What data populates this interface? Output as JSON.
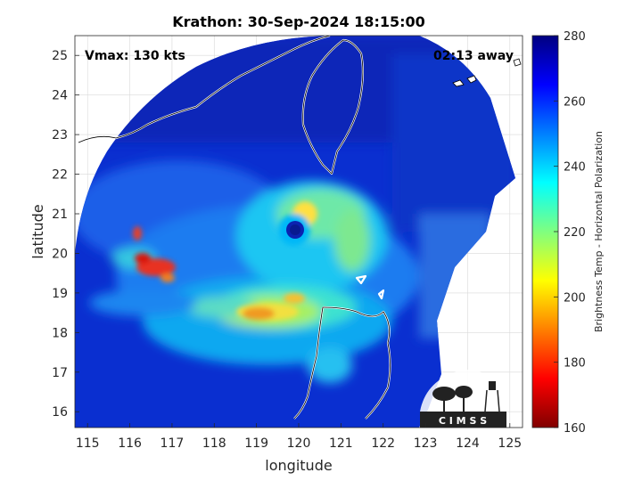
{
  "chart_data": {
    "type": "heatmap",
    "title": "Krathon: 30-Sep-2024 18:15:00",
    "xlabel": "longitude",
    "ylabel": "latitude",
    "xlim": [
      114.7,
      125.3
    ],
    "ylim": [
      15.6,
      25.5
    ],
    "x_ticks": [
      115,
      116,
      117,
      118,
      119,
      120,
      121,
      122,
      123,
      124,
      125
    ],
    "y_ticks": [
      16,
      17,
      18,
      19,
      20,
      21,
      22,
      23,
      24,
      25
    ],
    "grid": true,
    "annotations": {
      "vmax": "Vmax: 130 kts",
      "time_away": "02:13 away"
    },
    "colorbar": {
      "label": "Brightness Temp - Horizontal Polarization",
      "range": [
        160,
        280
      ],
      "ticks": [
        160,
        180,
        200,
        220,
        240,
        260,
        280
      ],
      "colormap": "jet"
    },
    "storm_center": {
      "lon": 120.0,
      "lat": 20.5
    },
    "logo_text": "C I M S S"
  }
}
